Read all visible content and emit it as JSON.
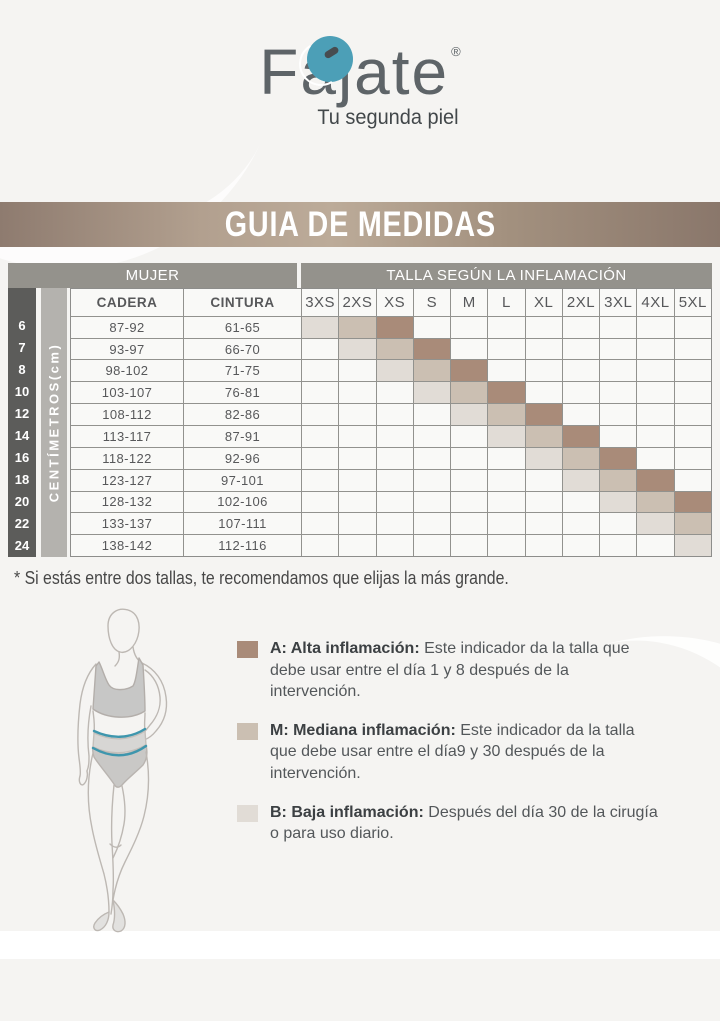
{
  "brand": {
    "name": "Fajate",
    "registered": "®",
    "tagline": "Tu segunda piel"
  },
  "title_band": {
    "text": "GUIA DE MEDIDAS"
  },
  "table": {
    "group_left": "MUJER",
    "group_right": "TALLA SEGÚN LA INFLAMACIÓN",
    "vertical_axis_label": "CENTÍMETROS(cm)",
    "measure_columns": [
      "CADERA",
      "CINTURA"
    ],
    "size_columns": [
      "3XS",
      "2XS",
      "XS",
      "S",
      "M",
      "L",
      "XL",
      "2XL",
      "3XL",
      "4XL",
      "5XL"
    ],
    "rows": [
      {
        "size": "6",
        "cadera": "87-92",
        "cintura": "61-65",
        "baja": "3XS",
        "mediana": "2XS",
        "alta": "XS"
      },
      {
        "size": "7",
        "cadera": "93-97",
        "cintura": "66-70",
        "baja": "2XS",
        "mediana": "XS",
        "alta": "S"
      },
      {
        "size": "8",
        "cadera": "98-102",
        "cintura": "71-75",
        "baja": "XS",
        "mediana": "S",
        "alta": "M"
      },
      {
        "size": "10",
        "cadera": "103-107",
        "cintura": "76-81",
        "baja": "S",
        "mediana": "M",
        "alta": "L"
      },
      {
        "size": "12",
        "cadera": "108-112",
        "cintura": "82-86",
        "baja": "M",
        "mediana": "L",
        "alta": "XL"
      },
      {
        "size": "14",
        "cadera": "113-117",
        "cintura": "87-91",
        "baja": "L",
        "mediana": "XL",
        "alta": "2XL"
      },
      {
        "size": "16",
        "cadera": "118-122",
        "cintura": "92-96",
        "baja": "XL",
        "mediana": "2XL",
        "alta": "3XL"
      },
      {
        "size": "18",
        "cadera": "123-127",
        "cintura": "97-101",
        "baja": "2XL",
        "mediana": "3XL",
        "alta": "4XL"
      },
      {
        "size": "20",
        "cadera": "128-132",
        "cintura": "102-106",
        "baja": "3XL",
        "mediana": "4XL",
        "alta": "5XL"
      },
      {
        "size": "22",
        "cadera": "133-137",
        "cintura": "107-111",
        "baja": "4XL",
        "mediana": "5XL",
        "alta": ""
      },
      {
        "size": "24",
        "cadera": "138-142",
        "cintura": "112-116",
        "baja": "5XL",
        "mediana": "",
        "alta": ""
      }
    ]
  },
  "footnote": "* Si estás entre dos tallas, te recomendamos que elijas la más grande.",
  "legend": [
    {
      "key": "A",
      "label": "A: Alta inflamación:",
      "description": "Este indicador da la talla que debe usar entre el día 1 y 8 después de la intervención.",
      "swatch_color": "#a98b79"
    },
    {
      "key": "M",
      "label": "M: Mediana inflamación:",
      "description": "Este indicador da la talla que debe usar entre el día9 y 30 después de la intervención.",
      "swatch_color": "#cbbfb2"
    },
    {
      "key": "B",
      "label": "B: Baja inflamación:",
      "description": "Después del día 30 de la cirugía o para uso diario.",
      "swatch_color": "#e1dcd6"
    }
  ],
  "colors": {
    "alta": "#a98b79",
    "mediana": "#cbbfb2",
    "baja": "#e1dcd6",
    "group_band": "#94928c",
    "dark_strip": "#5c5c5a",
    "gray_strip": "#b4b2ae",
    "teal_accent": "#4c9fb7",
    "title_band_taupe": "#a3917f"
  }
}
